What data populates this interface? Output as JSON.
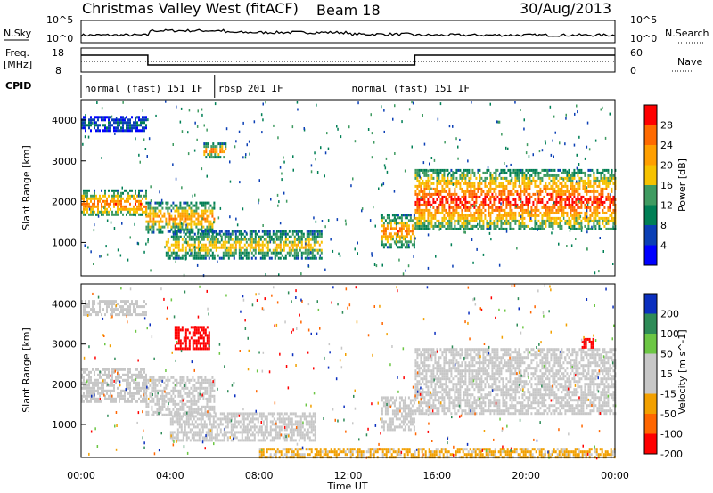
{
  "header": {
    "station": "Christmas Valley West (fitACF)",
    "beam": "Beam 18",
    "date": "30/Aug/2013"
  },
  "noise_panel": {
    "left_label": "N.Sky",
    "right_label": "N.Search",
    "left_ticks": [
      "10^5",
      "10^0"
    ],
    "right_ticks": [
      "10^5",
      "10^0"
    ]
  },
  "freq_panel": {
    "left_label_1": "Freq.",
    "left_label_2": "[MHz]",
    "right_label": "Nave",
    "left_ticks": [
      "18",
      "8"
    ],
    "right_ticks": [
      "60",
      "0"
    ]
  },
  "cpid": {
    "label": "CPID",
    "segments": [
      {
        "text": "normal (fast) 151 IF",
        "start_h": 0,
        "end_h": 6
      },
      {
        "text": "rbsp 201 IF",
        "start_h": 6,
        "end_h": 12
      },
      {
        "text": "normal (fast) 151 IF",
        "start_h": 12,
        "end_h": 24
      }
    ]
  },
  "x_axis": {
    "label": "Time UT",
    "ticks": [
      "00:00",
      "04:00",
      "08:00",
      "12:00",
      "16:00",
      "20:00",
      "00:00"
    ]
  },
  "chart_data": [
    {
      "type": "heatmap",
      "title": "",
      "quantity": "Power",
      "colorbar_label": "Power [dB]",
      "colorbar_ticks": [
        "28",
        "24",
        "20",
        "16",
        "12",
        "8",
        "4"
      ],
      "colorbar_colors": [
        "#ff0000",
        "#ff6a00",
        "#ff9f00",
        "#f6c200",
        "#3f9b61",
        "#007f55",
        "#0b3fb5",
        "#0000ff"
      ],
      "ylabel": "Slant Range [km]",
      "yticks": [
        "4000",
        "3000",
        "2000",
        "1000"
      ],
      "xlim_hours": [
        0,
        24
      ],
      "ylim_km": [
        180,
        4500
      ],
      "echo_bands": [
        {
          "t0": 0.0,
          "t1": 2.9,
          "r0": 1650,
          "r1": 2300,
          "peak_db": 26
        },
        {
          "t0": 0.0,
          "t1": 2.9,
          "r0": 3750,
          "r1": 4100,
          "peak_db": 8
        },
        {
          "t0": 2.9,
          "t1": 6.0,
          "r0": 1250,
          "r1": 2000,
          "peak_db": 24
        },
        {
          "t0": 3.8,
          "t1": 10.8,
          "r0": 600,
          "r1": 1300,
          "peak_db": 20
        },
        {
          "t0": 5.5,
          "t1": 6.5,
          "r0": 3100,
          "r1": 3450,
          "peak_db": 26
        },
        {
          "t0": 13.5,
          "t1": 15.0,
          "r0": 900,
          "r1": 1700,
          "peak_db": 26
        },
        {
          "t0": 15.0,
          "t1": 24.0,
          "r0": 1300,
          "r1": 2800,
          "peak_db": 30
        }
      ]
    },
    {
      "type": "heatmap",
      "title": "",
      "quantity": "Velocity",
      "colorbar_label": "Velocity [m s^-1]",
      "colorbar_ticks": [
        "200",
        "100",
        "50",
        "15",
        "-15",
        "-50",
        "-100",
        "-200"
      ],
      "colorbar_colors": [
        "#0b2fbf",
        "#2e8b57",
        "#6cc644",
        "#c7c7c7",
        "#c7c7c7",
        "#f2a000",
        "#ff6600",
        "#ff0000"
      ],
      "ylabel": "Slant Range [km]",
      "yticks": [
        "4000",
        "3000",
        "2000",
        "1000"
      ],
      "xlim_hours": [
        0,
        24
      ],
      "ylim_km": [
        180,
        4500
      ],
      "echo_bands": [
        {
          "t0": 0.0,
          "t1": 2.9,
          "r0": 1600,
          "r1": 2400,
          "velocity": 0
        },
        {
          "t0": 0.0,
          "t1": 2.9,
          "r0": 3750,
          "r1": 4100,
          "velocity": 0
        },
        {
          "t0": 2.9,
          "t1": 6.0,
          "r0": 1250,
          "r1": 2200,
          "velocity": 0
        },
        {
          "t0": 4.0,
          "t1": 10.5,
          "r0": 600,
          "r1": 1300,
          "velocity": 0
        },
        {
          "t0": 4.2,
          "t1": 5.8,
          "r0": 2900,
          "r1": 3450,
          "velocity": -200
        },
        {
          "t0": 13.5,
          "t1": 15.0,
          "r0": 900,
          "r1": 1700,
          "velocity": 0
        },
        {
          "t0": 15.0,
          "t1": 24.0,
          "r0": 1300,
          "r1": 2900,
          "velocity": 0
        },
        {
          "t0": 22.5,
          "t1": 23.0,
          "r0": 2950,
          "r1": 3150,
          "velocity": -200
        },
        {
          "t0": 8.0,
          "t1": 24.0,
          "r0": 180,
          "r1": 420,
          "velocity": -30
        }
      ]
    }
  ]
}
